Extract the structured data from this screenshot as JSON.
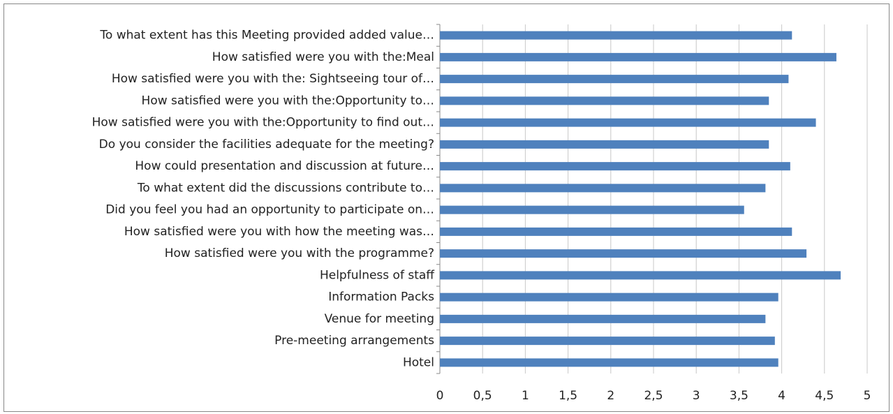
{
  "chart_data": {
    "type": "bar",
    "orientation": "horizontal",
    "categories": [
      "To what extent has this Meeting provided added value…",
      "How satisfied were you with the:Meal",
      "How satisfied were you with the: Sightseeing tour of…",
      "How satisfied were you with the:Opportunity to…",
      "How satisfied were you with the:Opportunity to find out…",
      "Do you consider the facilities adequate for the meeting?",
      "How could presentation and discussion at future…",
      "To what extent did the discussions contribute to…",
      "Did you feel you had an opportunity to participate on…",
      "How satisfied were you with how the meeting was…",
      "How satisfied were you with the programme?",
      "Helpfulness of staff",
      "Information Packs",
      "Venue for meeting",
      "Pre-meeting arrangements",
      "Hotel"
    ],
    "values": [
      4.12,
      4.64,
      4.08,
      3.85,
      4.4,
      3.85,
      4.1,
      3.81,
      3.56,
      4.12,
      4.29,
      4.69,
      3.96,
      3.81,
      3.92,
      3.96
    ],
    "color": "#4f81bd",
    "xlim": [
      0,
      5
    ],
    "xticks": [
      0,
      {
        "value": 0.5,
        "label": "0,5"
      },
      1,
      {
        "value": 1.5,
        "label": "1,5"
      },
      2,
      {
        "value": 2.5,
        "label": "2,5"
      },
      3,
      {
        "value": 3.5,
        "label": "3,5"
      },
      4,
      {
        "value": 4.5,
        "label": "4,5"
      },
      5
    ],
    "grid": true
  }
}
